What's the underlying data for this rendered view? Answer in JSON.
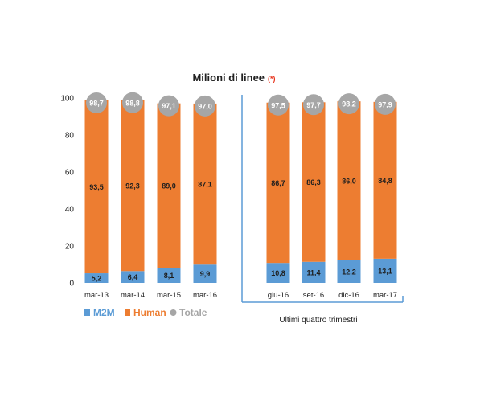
{
  "chart_data": {
    "type": "bar",
    "stacked": true,
    "title": "Milioni di linee",
    "title_note": "(*)",
    "categories": [
      "mar-13",
      "mar-14",
      "mar-15",
      "mar-16",
      "giu-16",
      "set-16",
      "dic-16",
      "mar-17"
    ],
    "series": [
      {
        "name": "M2M",
        "color": "#5b9bd5",
        "values": [
          5.2,
          6.4,
          8.1,
          9.9,
          10.8,
          11.4,
          12.2,
          13.1
        ],
        "labels": [
          "5,2",
          "6,4",
          "8,1",
          "9,9",
          "10,8",
          "11,4",
          "12,2",
          "13,1"
        ]
      },
      {
        "name": "Human",
        "color": "#ed7d31",
        "values": [
          93.5,
          92.3,
          89.0,
          87.1,
          86.7,
          86.3,
          86.0,
          84.8
        ],
        "labels": [
          "93,5",
          "92,3",
          "89,0",
          "87,1",
          "86,7",
          "86,3",
          "86,0",
          "84,8"
        ]
      }
    ],
    "totals": {
      "name": "Totale",
      "color": "#a6a6a6",
      "values": [
        98.7,
        98.8,
        97.1,
        97.0,
        97.5,
        97.7,
        98.2,
        97.9
      ],
      "labels": [
        "98,7",
        "98,8",
        "97,1",
        "97,0",
        "97,5",
        "97,7",
        "98,2",
        "97,9"
      ]
    },
    "ylim": [
      0,
      100
    ],
    "yticks": [
      0,
      20,
      40,
      60,
      80,
      100
    ],
    "grid": false,
    "legend_position": "bottom-left",
    "group_note": "Ultimi quattro trimestri",
    "divider_color": "#5b9bd5"
  }
}
